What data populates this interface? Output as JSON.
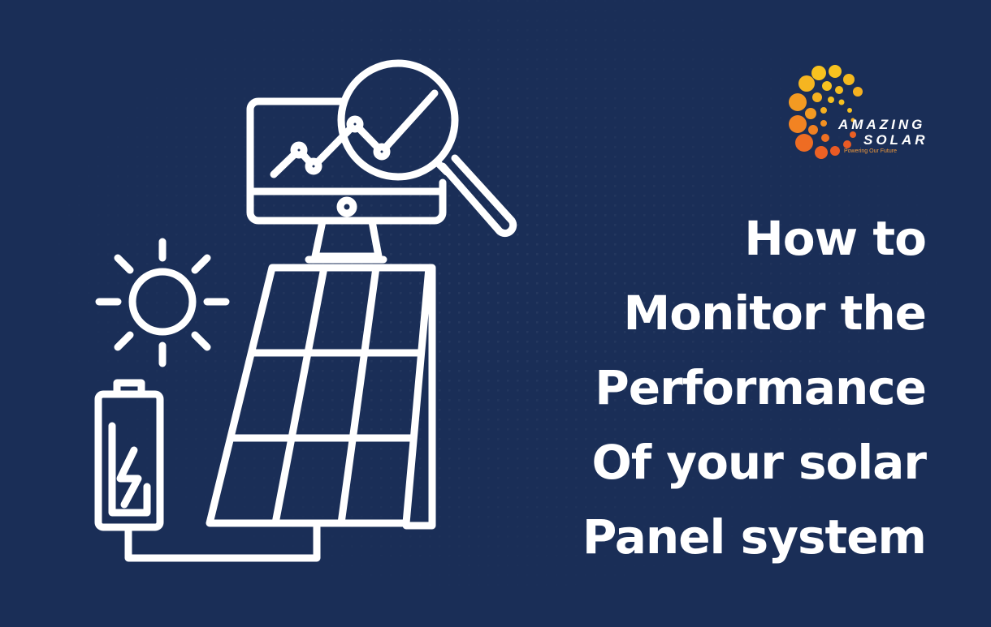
{
  "logo": {
    "line1": "AMAZING",
    "line2": "SOLAR",
    "tagline": "Powering Our Future",
    "colors": [
      "#f7c21f",
      "#f38a22",
      "#ea5a24"
    ]
  },
  "headline": [
    "How to",
    "Monitor the",
    "Performance",
    "Of your solar",
    "Panel system"
  ],
  "colors": {
    "background": "#1a2e57",
    "foreground": "#ffffff"
  },
  "illustration": {
    "icons": [
      "monitor-chart-icon",
      "magnifier-icon",
      "sun-icon",
      "battery-icon",
      "solar-panel-icon"
    ]
  }
}
